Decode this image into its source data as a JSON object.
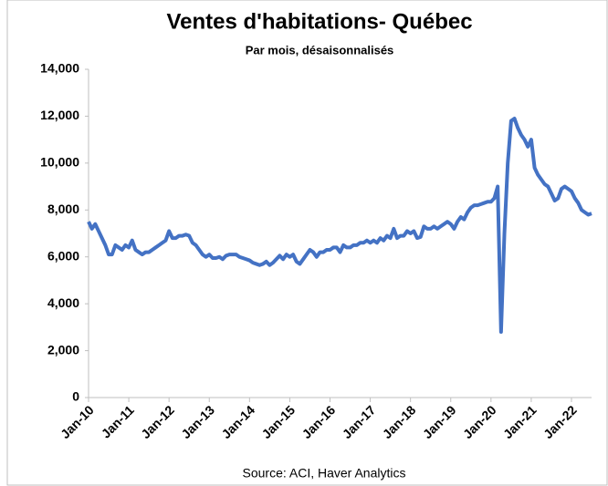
{
  "chart_data": {
    "type": "line",
    "title": "Ventes d'habitations- Québec",
    "subtitle": "Par mois, désaisonnalisés",
    "source": "Source: ACI, Haver Analytics",
    "categories": [
      "Jan-10",
      null,
      null,
      null,
      null,
      null,
      null,
      null,
      null,
      null,
      null,
      null,
      "Jan-11",
      null,
      null,
      null,
      null,
      null,
      null,
      null,
      null,
      null,
      null,
      null,
      "Jan-12",
      null,
      null,
      null,
      null,
      null,
      null,
      null,
      null,
      null,
      null,
      null,
      "Jan-13",
      null,
      null,
      null,
      null,
      null,
      null,
      null,
      null,
      null,
      null,
      null,
      "Jan-14",
      null,
      null,
      null,
      null,
      null,
      null,
      null,
      null,
      null,
      null,
      null,
      "Jan-15",
      null,
      null,
      null,
      null,
      null,
      null,
      null,
      null,
      null,
      null,
      null,
      "Jan-16",
      null,
      null,
      null,
      null,
      null,
      null,
      null,
      null,
      null,
      null,
      null,
      "Jan-17",
      null,
      null,
      null,
      null,
      null,
      null,
      null,
      null,
      null,
      null,
      null,
      "Jan-18",
      null,
      null,
      null,
      null,
      null,
      null,
      null,
      null,
      null,
      null,
      null,
      "Jan-19",
      null,
      null,
      null,
      null,
      null,
      null,
      null,
      null,
      null,
      null,
      null,
      "Jan-20",
      null,
      null,
      null,
      null,
      null,
      null,
      null,
      null,
      null,
      null,
      null,
      "Jan-21",
      null,
      null,
      null,
      null,
      null,
      null,
      null,
      null,
      null,
      null,
      null,
      "Jan-22",
      null,
      null,
      null,
      null,
      null,
      null
    ],
    "values": [
      7500,
      7200,
      7400,
      7100,
      6800,
      6500,
      6100,
      6100,
      6500,
      6400,
      6300,
      6500,
      6400,
      6700,
      6300,
      6200,
      6100,
      6200,
      6200,
      6300,
      6400,
      6500,
      6600,
      6700,
      7100,
      6800,
      6800,
      6900,
      6900,
      6950,
      6900,
      6600,
      6500,
      6300,
      6100,
      6000,
      6100,
      5950,
      5950,
      6000,
      5900,
      6050,
      6100,
      6100,
      6100,
      6000,
      5950,
      5900,
      5850,
      5750,
      5700,
      5650,
      5700,
      5800,
      5650,
      5750,
      5900,
      6050,
      5900,
      6100,
      6000,
      6100,
      5800,
      5700,
      5900,
      6100,
      6300,
      6200,
      6000,
      6200,
      6200,
      6300,
      6300,
      6400,
      6400,
      6200,
      6500,
      6400,
      6400,
      6500,
      6500,
      6600,
      6600,
      6700,
      6600,
      6700,
      6600,
      6800,
      6700,
      6900,
      6800,
      7200,
      6800,
      6900,
      6900,
      7100,
      7000,
      7100,
      6800,
      6850,
      7300,
      7200,
      7200,
      7300,
      7200,
      7300,
      7400,
      7500,
      7400,
      7200,
      7500,
      7700,
      7600,
      7900,
      8100,
      8200,
      8200,
      8250,
      8300,
      8350,
      8350,
      8500,
      9000,
      2800,
      7000,
      10000,
      11800,
      11900,
      11500,
      11200,
      11000,
      10700,
      11000,
      9800,
      9500,
      9300,
      9100,
      9000,
      8700,
      8400,
      8500,
      8900,
      9000,
      8900,
      8800,
      8500,
      8300,
      8000,
      7900,
      7800,
      7850
    ],
    "color": "#4472c4",
    "ylim": [
      0,
      14000
    ],
    "yticks": [
      0,
      {
        "value": 2000,
        "label": "2,000"
      },
      {
        "value": 4000,
        "label": "4,000"
      },
      {
        "value": 6000,
        "label": "6,000"
      },
      {
        "value": 8000,
        "label": "8,000"
      },
      {
        "value": 10000,
        "label": "10,000"
      },
      {
        "value": 12000,
        "label": "12,000"
      },
      {
        "value": 14000,
        "label": "14,000"
      }
    ],
    "grid": false
  }
}
